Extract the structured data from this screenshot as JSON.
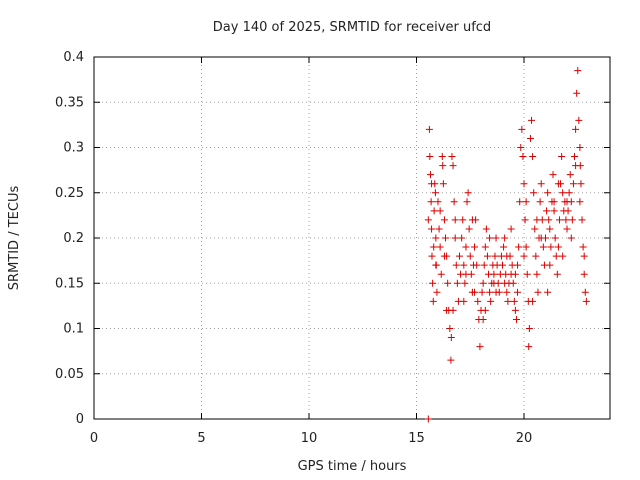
{
  "chart_data": {
    "type": "scatter",
    "title": "Day 140 of 2025, SRMTID for receiver ufcd",
    "xlabel": "GPS time / hours",
    "ylabel": "SRMTID / TECUs",
    "xlim": [
      0,
      24
    ],
    "ylim": [
      0,
      0.4
    ],
    "xticks": [
      0,
      5,
      10,
      15,
      20
    ],
    "xtick_labels": [
      "0",
      "5",
      "10",
      "15",
      "20"
    ],
    "yticks": [
      0,
      0.05,
      0.1,
      0.15,
      0.2,
      0.25,
      0.3,
      0.35,
      0.4
    ],
    "ytick_labels": [
      "0",
      "0.05",
      "0.1",
      "0.15",
      "0.2",
      "0.25",
      "0.3",
      "0.35",
      "0.4"
    ],
    "grid": true,
    "marker": "+",
    "color": "#dd0000",
    "series": [
      {
        "points": [
          [
            15.55,
            0.0
          ],
          [
            15.55,
            0.22
          ],
          [
            15.6,
            0.32
          ],
          [
            15.62,
            0.29
          ],
          [
            15.65,
            0.27
          ],
          [
            15.68,
            0.24
          ],
          [
            15.7,
            0.21
          ],
          [
            15.72,
            0.18
          ],
          [
            15.75,
            0.15
          ],
          [
            15.78,
            0.13
          ],
          [
            15.8,
            0.19
          ],
          [
            15.82,
            0.23
          ],
          [
            15.85,
            0.26
          ],
          [
            15.88,
            0.25
          ],
          [
            15.9,
            0.2
          ],
          [
            15.92,
            0.17
          ],
          [
            15.95,
            0.14
          ],
          [
            16.0,
            0.24
          ],
          [
            16.05,
            0.21
          ],
          [
            16.1,
            0.19
          ],
          [
            16.15,
            0.16
          ],
          [
            16.2,
            0.29
          ],
          [
            16.22,
            0.28
          ],
          [
            16.25,
            0.26
          ],
          [
            16.3,
            0.22
          ],
          [
            16.35,
            0.2
          ],
          [
            16.4,
            0.18
          ],
          [
            16.45,
            0.15
          ],
          [
            16.5,
            0.12
          ],
          [
            16.55,
            0.1
          ],
          [
            16.6,
            0.065
          ],
          [
            16.62,
            0.09
          ],
          [
            16.65,
            0.29
          ],
          [
            16.7,
            0.28
          ],
          [
            16.75,
            0.24
          ],
          [
            16.8,
            0.2
          ],
          [
            16.85,
            0.17
          ],
          [
            16.9,
            0.15
          ],
          [
            16.95,
            0.13
          ],
          [
            17.0,
            0.18
          ],
          [
            17.05,
            0.16
          ],
          [
            17.1,
            0.2
          ],
          [
            17.15,
            0.22
          ],
          [
            17.2,
            0.17
          ],
          [
            17.25,
            0.15
          ],
          [
            17.3,
            0.19
          ],
          [
            17.35,
            0.24
          ],
          [
            17.4,
            0.25
          ],
          [
            17.45,
            0.21
          ],
          [
            17.5,
            0.18
          ],
          [
            17.55,
            0.16
          ],
          [
            17.6,
            0.14
          ],
          [
            17.65,
            0.17
          ],
          [
            17.7,
            0.19
          ],
          [
            17.75,
            0.22
          ],
          [
            17.8,
            0.17
          ],
          [
            17.85,
            0.13
          ],
          [
            17.9,
            0.11
          ],
          [
            17.95,
            0.08
          ],
          [
            18.0,
            0.12
          ],
          [
            18.05,
            0.14
          ],
          [
            18.1,
            0.15
          ],
          [
            18.15,
            0.17
          ],
          [
            18.2,
            0.19
          ],
          [
            18.25,
            0.21
          ],
          [
            18.3,
            0.18
          ],
          [
            18.35,
            0.16
          ],
          [
            18.4,
            0.14
          ],
          [
            18.45,
            0.13
          ],
          [
            18.5,
            0.15
          ],
          [
            18.55,
            0.17
          ],
          [
            18.6,
            0.16
          ],
          [
            18.65,
            0.18
          ],
          [
            18.7,
            0.2
          ],
          [
            18.75,
            0.17
          ],
          [
            18.8,
            0.15
          ],
          [
            18.85,
            0.14
          ],
          [
            18.9,
            0.16
          ],
          [
            18.95,
            0.18
          ],
          [
            19.0,
            0.17
          ],
          [
            19.05,
            0.19
          ],
          [
            19.1,
            0.2
          ],
          [
            19.15,
            0.16
          ],
          [
            19.2,
            0.14
          ],
          [
            19.25,
            0.13
          ],
          [
            19.3,
            0.15
          ],
          [
            19.35,
            0.18
          ],
          [
            19.4,
            0.21
          ],
          [
            19.45,
            0.17
          ],
          [
            19.5,
            0.15
          ],
          [
            19.55,
            0.13
          ],
          [
            19.6,
            0.12
          ],
          [
            19.65,
            0.11
          ],
          [
            19.7,
            0.14
          ],
          [
            19.75,
            0.19
          ],
          [
            19.8,
            0.24
          ],
          [
            19.85,
            0.3
          ],
          [
            19.9,
            0.32
          ],
          [
            19.95,
            0.29
          ],
          [
            20.0,
            0.26
          ],
          [
            20.05,
            0.22
          ],
          [
            20.1,
            0.19
          ],
          [
            20.15,
            0.16
          ],
          [
            20.2,
            0.13
          ],
          [
            20.22,
            0.08
          ],
          [
            20.25,
            0.1
          ],
          [
            20.3,
            0.31
          ],
          [
            20.35,
            0.33
          ],
          [
            20.4,
            0.29
          ],
          [
            20.45,
            0.25
          ],
          [
            20.5,
            0.21
          ],
          [
            20.55,
            0.18
          ],
          [
            20.6,
            0.16
          ],
          [
            20.65,
            0.14
          ],
          [
            20.7,
            0.2
          ],
          [
            20.75,
            0.24
          ],
          [
            20.8,
            0.26
          ],
          [
            20.85,
            0.22
          ],
          [
            20.9,
            0.19
          ],
          [
            20.95,
            0.17
          ],
          [
            21.0,
            0.2
          ],
          [
            21.05,
            0.23
          ],
          [
            21.1,
            0.25
          ],
          [
            21.15,
            0.22
          ],
          [
            21.2,
            0.21
          ],
          [
            21.25,
            0.19
          ],
          [
            21.3,
            0.24
          ],
          [
            21.35,
            0.27
          ],
          [
            21.4,
            0.23
          ],
          [
            21.45,
            0.2
          ],
          [
            21.5,
            0.18
          ],
          [
            21.55,
            0.16
          ],
          [
            21.6,
            0.19
          ],
          [
            21.65,
            0.22
          ],
          [
            21.7,
            0.26
          ],
          [
            21.75,
            0.29
          ],
          [
            21.8,
            0.25
          ],
          [
            21.85,
            0.23
          ],
          [
            21.9,
            0.24
          ],
          [
            21.95,
            0.22
          ],
          [
            22.0,
            0.21
          ],
          [
            22.05,
            0.23
          ],
          [
            22.1,
            0.25
          ],
          [
            22.15,
            0.27
          ],
          [
            22.2,
            0.24
          ],
          [
            22.25,
            0.22
          ],
          [
            22.3,
            0.26
          ],
          [
            22.35,
            0.29
          ],
          [
            22.4,
            0.32
          ],
          [
            22.45,
            0.36
          ],
          [
            22.5,
            0.385
          ],
          [
            22.55,
            0.33
          ],
          [
            22.6,
            0.3
          ],
          [
            22.62,
            0.28
          ],
          [
            22.65,
            0.26
          ],
          [
            22.7,
            0.22
          ],
          [
            22.75,
            0.19
          ],
          [
            22.8,
            0.16
          ],
          [
            22.85,
            0.14
          ],
          [
            22.9,
            0.13
          ],
          [
            15.7,
            0.26
          ],
          [
            16.1,
            0.23
          ],
          [
            16.4,
            0.12
          ],
          [
            16.7,
            0.12
          ],
          [
            17.2,
            0.13
          ],
          [
            17.6,
            0.22
          ],
          [
            18.1,
            0.11
          ],
          [
            18.4,
            0.2
          ],
          [
            18.7,
            0.14
          ],
          [
            19.1,
            0.15
          ],
          [
            19.4,
            0.16
          ],
          [
            19.7,
            0.17
          ],
          [
            20.1,
            0.24
          ],
          [
            20.4,
            0.13
          ],
          [
            20.8,
            0.2
          ],
          [
            21.1,
            0.14
          ],
          [
            21.4,
            0.24
          ],
          [
            21.8,
            0.18
          ],
          [
            22.2,
            0.2
          ],
          [
            22.6,
            0.24
          ],
          [
            15.9,
            0.17
          ],
          [
            16.3,
            0.18
          ],
          [
            16.8,
            0.22
          ],
          [
            17.3,
            0.16
          ],
          [
            17.7,
            0.14
          ],
          [
            18.2,
            0.12
          ],
          [
            18.6,
            0.15
          ],
          [
            19.2,
            0.18
          ],
          [
            19.6,
            0.16
          ],
          [
            20.0,
            0.18
          ],
          [
            20.6,
            0.22
          ],
          [
            21.2,
            0.17
          ],
          [
            21.6,
            0.26
          ],
          [
            22.0,
            0.24
          ],
          [
            22.4,
            0.28
          ],
          [
            22.8,
            0.18
          ]
        ]
      }
    ]
  }
}
